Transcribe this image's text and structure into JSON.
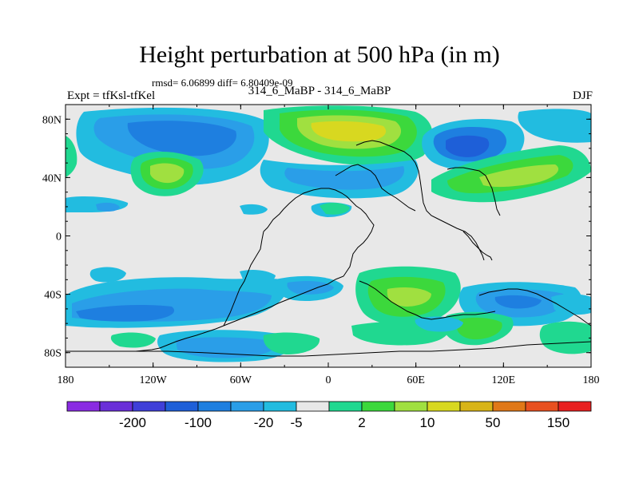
{
  "title": "Height perturbation at 500 hPa (in m)",
  "stats": "rmsd= 6.06899 diff= 6.80409e-09",
  "left_label": "Expt = tfKsl-tfKel",
  "center_label": "314_6_MaBP - 314_6_MaBP",
  "right_label": "DJF",
  "y_ticks": [
    {
      "lat": 80,
      "label": "80N"
    },
    {
      "lat": 40,
      "label": "40N"
    },
    {
      "lat": 0,
      "label": "0"
    },
    {
      "lat": -40,
      "label": "40S"
    },
    {
      "lat": -80,
      "label": "80S"
    }
  ],
  "x_ticks": [
    {
      "lon": -180,
      "label": "180"
    },
    {
      "lon": -120,
      "label": "120W"
    },
    {
      "lon": -60,
      "label": "60W"
    },
    {
      "lon": 0,
      "label": "0"
    },
    {
      "lon": 60,
      "label": "60E"
    },
    {
      "lon": 120,
      "label": "120E"
    },
    {
      "lon": 180,
      "label": "180"
    }
  ],
  "colorbar": {
    "colors": [
      "#8a2be2",
      "#6a2fd8",
      "#3f3fd8",
      "#1e5fd8",
      "#1e7fe0",
      "#2a9ee8",
      "#22bce0",
      "#e8e8e8",
      "#20d890",
      "#3cd83c",
      "#a0e040",
      "#d8d820",
      "#d8b418",
      "#e07818",
      "#e85020",
      "#e82020"
    ],
    "labels": [
      {
        "after": 1,
        "text": "-200"
      },
      {
        "after": 3,
        "text": "-100"
      },
      {
        "after": 5,
        "text": "-20"
      },
      {
        "after": 6,
        "text": "-5"
      },
      {
        "after": 8,
        "text": "2"
      },
      {
        "after": 10,
        "text": "10"
      },
      {
        "after": 12,
        "text": "50"
      },
      {
        "after": 14,
        "text": "150"
      }
    ]
  },
  "colors": {
    "background_field": "#e8e8e8",
    "coast": "#000000"
  }
}
